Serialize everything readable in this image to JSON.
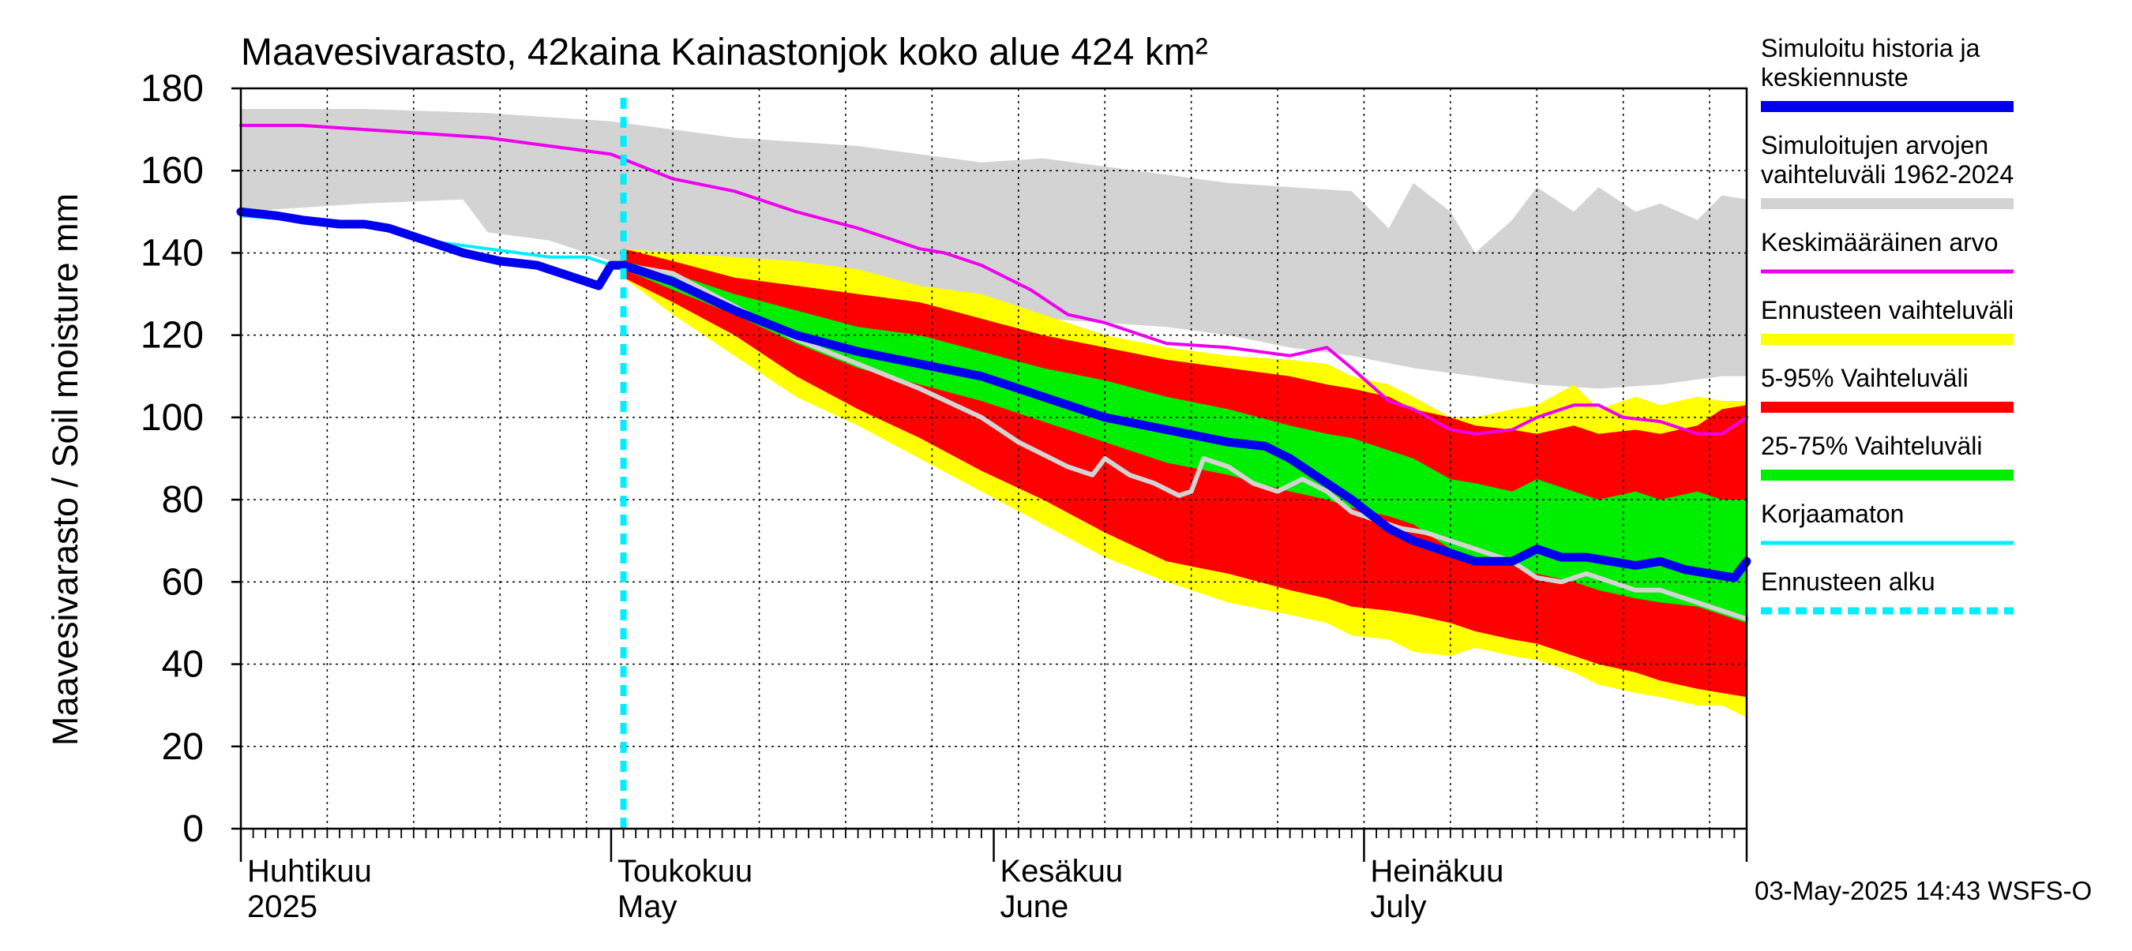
{
  "chart_data": {
    "type": "area",
    "title": "Maavesivarasto, 42kaina Kainastonjok koko alue 424 km²",
    "ylabel": "Maavesivarasto / Soil moisture   mm",
    "ylim": [
      0,
      180
    ],
    "yticks": [
      0,
      20,
      40,
      60,
      80,
      100,
      120,
      140,
      160,
      180
    ],
    "xlim_days": [
      0,
      122
    ],
    "month_labels": [
      {
        "fi": "Huhtikuu",
        "en": "2025",
        "day": 0
      },
      {
        "fi": "Toukokuu",
        "en": "May",
        "day": 30
      },
      {
        "fi": "Kesäkuu",
        "en": "June",
        "day": 61
      },
      {
        "fi": "Heinäkuu",
        "en": "July",
        "day": 91
      }
    ],
    "month_boundaries": [
      0,
      30,
      61,
      91,
      122
    ],
    "forecast_start_day": 31,
    "timestamp": "03-May-2025 14:43 WSFS-O",
    "colors": {
      "history": "#0000ee",
      "range_hist": "#d3d3d3",
      "mean": "#ee00ee",
      "forecast_range": "#ffff00",
      "p5_95": "#ff0000",
      "p25_75": "#00ee00",
      "uncorrected": "#00eeff",
      "forecast_start": "#00eeff",
      "ensemble_gray": "#d3d3d3"
    },
    "legend": [
      {
        "label": "Simuloitu historia ja keskiennuste",
        "style": "history"
      },
      {
        "label": "Simuloitujen arvojen vaihteluväli 1962-2024",
        "style": "range_hist"
      },
      {
        "label": "Keskimääräinen arvo",
        "style": "mean"
      },
      {
        "label": "Ennusteen vaihteluväli",
        "style": "forecast_range"
      },
      {
        "label": "5-95% Vaihteluväli",
        "style": "p5_95"
      },
      {
        "label": "25-75% Vaihteluväli",
        "style": "p25_75"
      },
      {
        "label": "Korjaamaton",
        "style": "uncorrected"
      },
      {
        "label": "Ennusteen alku",
        "style": "forecast_start"
      }
    ],
    "series": {
      "hist_range_upper": {
        "x": [
          0,
          10,
          20,
          30,
          35,
          40,
          45,
          50,
          55,
          60,
          65,
          70,
          75,
          80,
          85,
          90,
          93,
          95,
          98,
          100,
          103,
          105,
          108,
          110,
          113,
          115,
          118,
          120,
          122
        ],
        "y": [
          175,
          175,
          174,
          172,
          170,
          168,
          167,
          166,
          164,
          162,
          163,
          161,
          159,
          157,
          156,
          155,
          146,
          157,
          150,
          140,
          148,
          156,
          150,
          156,
          150,
          152,
          148,
          154,
          153
        ]
      },
      "hist_range_lower": {
        "x": [
          0,
          10,
          18,
          20,
          25,
          30,
          35,
          40,
          45,
          50,
          55,
          60,
          65,
          70,
          75,
          80,
          85,
          90,
          95,
          100,
          105,
          110,
          115,
          120,
          122
        ],
        "y": [
          150,
          152,
          153,
          145,
          143,
          138,
          132,
          130,
          128,
          127,
          125,
          124,
          124,
          123,
          122,
          120,
          117,
          115,
          112,
          110,
          108,
          107,
          108,
          110,
          110
        ]
      },
      "mean": {
        "x": [
          0,
          5,
          10,
          15,
          20,
          25,
          30,
          35,
          40,
          45,
          50,
          55,
          57,
          60,
          64,
          67,
          70,
          75,
          80,
          85,
          88,
          90,
          93,
          95,
          98,
          100,
          103,
          105,
          108,
          110,
          112,
          115,
          118,
          120,
          122
        ],
        "y": [
          171,
          171,
          170,
          169,
          168,
          166,
          164,
          158,
          155,
          150,
          146,
          141,
          140,
          137,
          131,
          125,
          123,
          118,
          117,
          115,
          117,
          112,
          104,
          102,
          97,
          96,
          97,
          100,
          103,
          103,
          100,
          99,
          96,
          96,
          100
        ]
      },
      "history": {
        "x": [
          0,
          3,
          5,
          8,
          10,
          12,
          15,
          18,
          21,
          24,
          26,
          28,
          29,
          30,
          31
        ],
        "y": [
          150,
          149,
          148,
          147,
          147,
          146,
          143,
          140,
          138,
          137,
          135,
          133,
          132,
          137,
          137
        ]
      },
      "uncorrected": {
        "x": [
          0,
          5,
          10,
          15,
          20,
          25,
          28,
          30,
          31
        ],
        "y": [
          149,
          148,
          147,
          143,
          141,
          139,
          139,
          137,
          137
        ]
      },
      "forecast_median": {
        "x": [
          31,
          35,
          40,
          45,
          50,
          55,
          60,
          65,
          70,
          75,
          80,
          83,
          85,
          88,
          90,
          93,
          95,
          98,
          100,
          103,
          105,
          107,
          109,
          111,
          113,
          115,
          117,
          119,
          121,
          122
        ],
        "y": [
          137,
          133,
          126,
          120,
          116,
          113,
          110,
          105,
          100,
          97,
          94,
          93,
          90,
          84,
          80,
          73,
          70,
          67,
          65,
          65,
          68,
          66,
          66,
          65,
          64,
          65,
          63,
          62,
          61,
          65
        ]
      },
      "forecast_range_upper": {
        "x": [
          31,
          35,
          40,
          45,
          50,
          55,
          60,
          65,
          70,
          75,
          80,
          85,
          88,
          90,
          93,
          95,
          98,
          100,
          103,
          105,
          108,
          110,
          113,
          115,
          118,
          120,
          122
        ],
        "y": [
          141,
          140,
          139,
          138,
          136,
          132,
          130,
          125,
          120,
          117,
          115,
          114,
          113,
          110,
          108,
          105,
          100,
          100,
          102,
          103,
          108,
          102,
          105,
          103,
          105,
          104,
          104
        ]
      },
      "forecast_range_lower": {
        "x": [
          31,
          35,
          40,
          45,
          50,
          55,
          60,
          65,
          70,
          75,
          80,
          85,
          88,
          90,
          93,
          95,
          98,
          100,
          103,
          105,
          108,
          110,
          113,
          115,
          118,
          120,
          122
        ],
        "y": [
          134,
          125,
          115,
          105,
          98,
          90,
          82,
          74,
          66,
          60,
          55,
          52,
          50,
          47,
          46,
          43,
          42,
          44,
          42,
          41,
          38,
          35,
          33,
          32,
          30,
          30,
          27
        ]
      },
      "p5_95_upper": {
        "x": [
          31,
          35,
          40,
          45,
          50,
          55,
          60,
          65,
          70,
          75,
          80,
          85,
          88,
          90,
          93,
          95,
          98,
          100,
          103,
          105,
          108,
          110,
          113,
          115,
          118,
          120,
          122
        ],
        "y": [
          141,
          138,
          134,
          132,
          130,
          128,
          124,
          120,
          117,
          114,
          112,
          110,
          108,
          107,
          105,
          102,
          100,
          98,
          97,
          96,
          98,
          96,
          97,
          96,
          98,
          102,
          103
        ]
      },
      "p5_95_lower": {
        "x": [
          31,
          35,
          40,
          45,
          50,
          55,
          60,
          65,
          70,
          75,
          80,
          85,
          88,
          90,
          93,
          95,
          98,
          100,
          103,
          105,
          108,
          110,
          113,
          115,
          118,
          120,
          122
        ],
        "y": [
          134,
          128,
          120,
          110,
          102,
          95,
          87,
          80,
          72,
          65,
          62,
          58,
          56,
          54,
          53,
          52,
          50,
          48,
          46,
          45,
          42,
          40,
          38,
          36,
          34,
          33,
          32
        ]
      },
      "p25_75_upper": {
        "x": [
          31,
          35,
          40,
          45,
          50,
          55,
          60,
          65,
          70,
          75,
          80,
          85,
          88,
          90,
          93,
          95,
          98,
          100,
          103,
          105,
          108,
          110,
          113,
          115,
          118,
          120,
          122
        ],
        "y": [
          138,
          135,
          130,
          126,
          122,
          120,
          116,
          112,
          109,
          105,
          102,
          98,
          96,
          95,
          92,
          90,
          85,
          84,
          82,
          85,
          82,
          80,
          82,
          80,
          82,
          80,
          80
        ]
      },
      "p25_75_lower": {
        "x": [
          31,
          35,
          40,
          45,
          50,
          55,
          60,
          65,
          70,
          75,
          80,
          85,
          88,
          90,
          93,
          95,
          98,
          100,
          103,
          105,
          108,
          110,
          113,
          115,
          118,
          120,
          122
        ],
        "y": [
          136,
          131,
          125,
          118,
          112,
          108,
          104,
          99,
          94,
          89,
          86,
          82,
          80,
          78,
          76,
          74,
          68,
          66,
          64,
          62,
          60,
          58,
          56,
          55,
          54,
          52,
          50
        ]
      },
      "ensemble_gray": {
        "x": [
          31,
          35,
          40,
          45,
          50,
          55,
          60,
          63,
          65,
          67,
          69,
          70,
          72,
          74,
          76,
          77,
          78,
          80,
          82,
          84,
          86,
          88,
          90,
          92,
          94,
          96,
          98,
          100,
          102,
          103,
          105,
          107,
          109,
          111,
          113,
          115,
          117,
          119,
          121,
          122
        ],
        "y": [
          137,
          135,
          127,
          119,
          113,
          107,
          100,
          94,
          91,
          88,
          86,
          90,
          86,
          84,
          81,
          82,
          90,
          88,
          84,
          82,
          85,
          82,
          77,
          75,
          73,
          72,
          70,
          68,
          66,
          65,
          61,
          60,
          62,
          60,
          58,
          58,
          56,
          54,
          52,
          51
        ]
      }
    }
  }
}
